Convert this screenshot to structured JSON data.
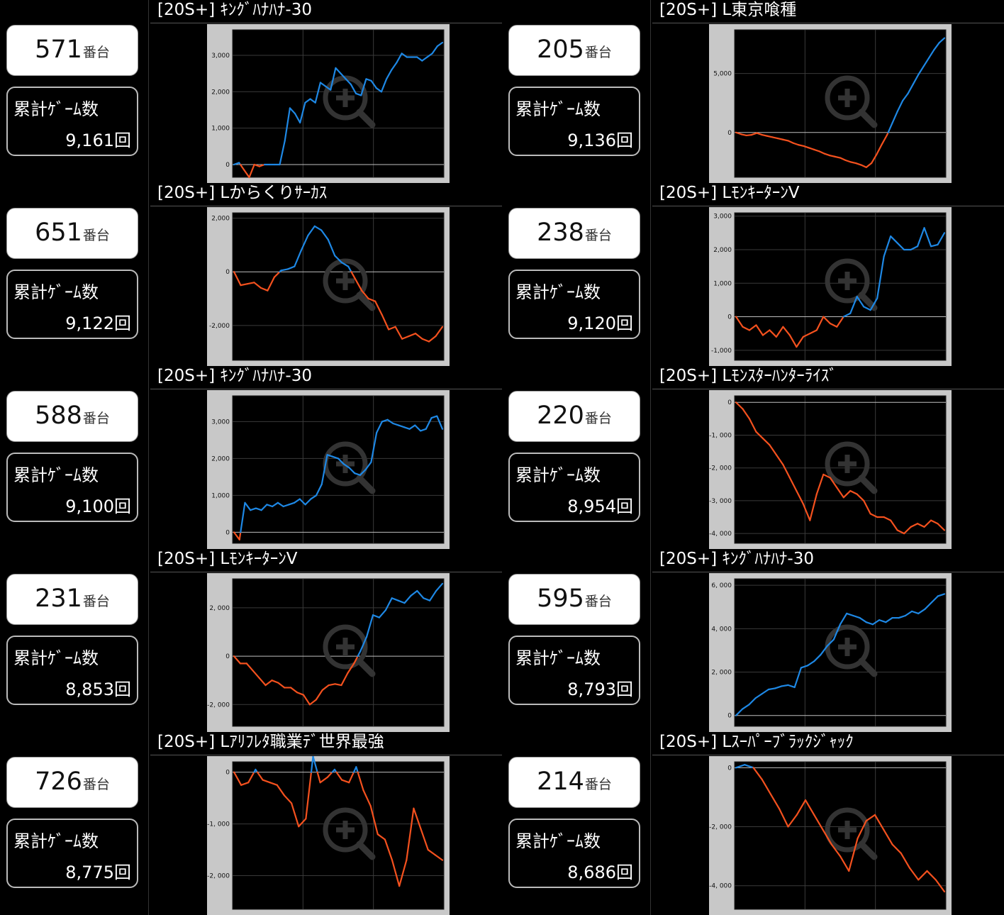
{
  "unit_suffix": "番台",
  "games_label": "累計ｹﾞｰﾑ数",
  "colors": {
    "plus": "#1e88e5",
    "minus": "#f4511e",
    "frame": "#c8c8c8",
    "plot_bg": "#000000",
    "grid": "#3a3a3a",
    "zero": "#bfbfbf"
  },
  "magnifier_icon": "zoom-in-magnifier-icon",
  "machines": [
    {
      "machine": "571",
      "games": "9,161回",
      "title": "[20S+] ｷﾝｸﾞﾊﾅﾊﾅ-30"
    },
    {
      "machine": "205",
      "games": "9,136回",
      "title": "[20S+] L東京喰種"
    },
    {
      "machine": "651",
      "games": "9,122回",
      "title": "[20S+] Lからくりｻｰｶｽ"
    },
    {
      "machine": "238",
      "games": "9,120回",
      "title": "[20S+] LﾓﾝｷｰﾀｰﾝⅤ"
    },
    {
      "machine": "588",
      "games": "9,100回",
      "title": "[20S+] ｷﾝｸﾞﾊﾅﾊﾅ-30"
    },
    {
      "machine": "220",
      "games": "8,954回",
      "title": "[20S+] Lﾓﾝｽﾀｰﾊﾝﾀｰﾗｲｽﾞ"
    },
    {
      "machine": "231",
      "games": "8,853回",
      "title": "[20S+] LﾓﾝｷｰﾀｰﾝⅤ"
    },
    {
      "machine": "595",
      "games": "8,793回",
      "title": "[20S+] ｷﾝｸﾞﾊﾅﾊﾅ-30"
    },
    {
      "machine": "726",
      "games": "8,775回",
      "title": "[20S+] Lｱﾘﾌﾚﾀ職業ﾃﾞ世界最強"
    },
    {
      "machine": "214",
      "games": "8,686回",
      "title": "[20S+] Lｽｰﾊﾟｰﾌﾞﾗｯｸｼﾞｬｯｸ"
    }
  ],
  "chart_data": [
    {
      "type": "line",
      "yticks": [
        0,
        1000,
        2000,
        3000
      ],
      "ytick_labels": [
        "0",
        "1,000",
        "2,000",
        "3,000"
      ],
      "ylim": [
        -350,
        3700
      ],
      "values": [
        0,
        50,
        -150,
        -350,
        0,
        -50,
        0,
        0,
        0,
        0,
        650,
        1550,
        1400,
        1150,
        1700,
        1800,
        1700,
        2250,
        2150,
        2050,
        2650,
        2500,
        2350,
        2200,
        1950,
        1900,
        2350,
        2300,
        2100,
        2000,
        2350,
        2600,
        2800,
        3050,
        2950,
        2950,
        2950,
        2850,
        2950,
        3050,
        3250,
        3350
      ]
    },
    {
      "type": "line",
      "yticks": [
        0,
        5000
      ],
      "ytick_labels": [
        "0",
        "5,000"
      ],
      "ylim": [
        -3800,
        8700
      ],
      "values": [
        0,
        -150,
        -250,
        -200,
        -50,
        -200,
        -300,
        -400,
        -500,
        -600,
        -700,
        -900,
        -1050,
        -1150,
        -1300,
        -1450,
        -1600,
        -1800,
        -1950,
        -2050,
        -2150,
        -2350,
        -2500,
        -2600,
        -2750,
        -2950,
        -2600,
        -1850,
        -1000,
        -200,
        800,
        1800,
        2700,
        3300,
        4100,
        4900,
        5600,
        6300,
        7000,
        7600,
        8000
      ]
    },
    {
      "type": "line",
      "yticks": [
        -2000,
        0,
        2000
      ],
      "ytick_labels": [
        "-2,000",
        "0",
        "2,000"
      ],
      "ylim": [
        -3300,
        2200
      ],
      "values": [
        0,
        -500,
        -450,
        -400,
        -600,
        -700,
        -200,
        50,
        100,
        200,
        800,
        1350,
        1700,
        1550,
        1200,
        600,
        350,
        200,
        -250,
        -700,
        -1000,
        -1100,
        -1600,
        -2150,
        -2050,
        -2500,
        -2400,
        -2300,
        -2500,
        -2600,
        -2400,
        -2050
      ]
    },
    {
      "type": "line",
      "yticks": [
        -1000,
        0,
        1000,
        2000,
        3000
      ],
      "ytick_labels": [
        "-1,000",
        "0",
        "1,000",
        "2,000",
        "3,000"
      ],
      "ylim": [
        -1300,
        3100
      ],
      "values": [
        0,
        -300,
        -400,
        -250,
        -550,
        -400,
        -600,
        -300,
        -550,
        -900,
        -600,
        -500,
        -400,
        0,
        -200,
        -300,
        0,
        100,
        600,
        300,
        200,
        550,
        1800,
        2400,
        2200,
        2000,
        2000,
        2100,
        2650,
        2100,
        2150,
        2500
      ]
    },
    {
      "type": "line",
      "yticks": [
        0,
        1000,
        2000,
        3000
      ],
      "ytick_labels": [
        "0",
        "1,000",
        "2,000",
        "3,000"
      ],
      "ylim": [
        -300,
        3700
      ],
      "values": [
        0,
        -200,
        800,
        600,
        650,
        600,
        750,
        700,
        800,
        700,
        750,
        800,
        900,
        750,
        900,
        1000,
        1300,
        2100,
        2050,
        2000,
        1850,
        1750,
        1600,
        1550,
        1700,
        1900,
        2700,
        3000,
        3050,
        2950,
        2900,
        2850,
        2800,
        2900,
        2750,
        2800,
        3100,
        3150,
        2800
      ]
    },
    {
      "type": "line",
      "yticks": [
        -4000,
        -3000,
        -2000,
        -1000,
        0
      ],
      "ytick_labels": [
        "-4, 000",
        "-3, 000",
        "-2, 000",
        "-1, 000",
        "0"
      ],
      "ylim": [
        -4300,
        200
      ],
      "values": [
        0,
        -200,
        -500,
        -900,
        -1100,
        -1300,
        -1600,
        -1900,
        -2300,
        -2700,
        -3100,
        -3600,
        -2800,
        -2200,
        -2300,
        -2600,
        -2900,
        -2700,
        -2800,
        -3000,
        -3400,
        -3500,
        -3500,
        -3600,
        -3900,
        -4000,
        -3800,
        -3700,
        -3800,
        -3600,
        -3700,
        -3900
      ]
    },
    {
      "type": "line",
      "yticks": [
        -2000,
        0,
        2000
      ],
      "ytick_labels": [
        "-2, 000",
        "0",
        "2, 000"
      ],
      "ylim": [
        -2900,
        3200
      ],
      "values": [
        0,
        -300,
        -300,
        -600,
        -900,
        -1200,
        -1000,
        -1100,
        -1300,
        -1300,
        -1500,
        -1600,
        -2000,
        -1800,
        -1400,
        -1200,
        -1150,
        -1200,
        -700,
        -300,
        200,
        800,
        1700,
        1600,
        1900,
        2400,
        2300,
        2200,
        2500,
        2700,
        2400,
        2300,
        2700,
        3000
      ]
    },
    {
      "type": "line",
      "yticks": [
        0,
        2000,
        4000,
        6000
      ],
      "ytick_labels": [
        "0",
        "2, 000",
        "4, 000",
        "6, 000"
      ],
      "ylim": [
        -500,
        6300
      ],
      "values": [
        0,
        300,
        500,
        800,
        1000,
        1200,
        1250,
        1350,
        1400,
        1300,
        2200,
        2300,
        2500,
        2800,
        3200,
        3500,
        4200,
        4700,
        4600,
        4500,
        4300,
        4200,
        4400,
        4300,
        4500,
        4500,
        4600,
        4800,
        4700,
        4900,
        5200,
        5500,
        5600
      ]
    },
    {
      "type": "line",
      "yticks": [
        -2000,
        -1000,
        0
      ],
      "ytick_labels": [
        "-2, 000",
        "-1, 000",
        "0"
      ],
      "ylim": [
        -2650,
        200
      ],
      "values": [
        0,
        -250,
        -200,
        50,
        -150,
        -200,
        -250,
        -450,
        -600,
        -1050,
        -900,
        300,
        -200,
        -100,
        50,
        -150,
        -200,
        100,
        -350,
        -650,
        -1200,
        -1300,
        -1700,
        -2200,
        -1700,
        -700,
        -1100,
        -1500,
        -1600,
        -1700
      ]
    },
    {
      "type": "line",
      "yticks": [
        -4000,
        -2000,
        0
      ],
      "ytick_labels": [
        "-4, 000",
        "-2, 000",
        "0"
      ],
      "ylim": [
        -4800,
        200
      ],
      "values": [
        0,
        100,
        0,
        -400,
        -900,
        -1400,
        -2000,
        -1600,
        -1100,
        -1600,
        -2100,
        -2600,
        -3000,
        -3500,
        -2400,
        -1800,
        -1600,
        -2100,
        -2600,
        -2900,
        -3400,
        -3800,
        -3500,
        -3800,
        -4200
      ]
    }
  ]
}
